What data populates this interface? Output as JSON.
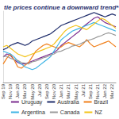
{
  "chart_data": {
    "type": "line",
    "title": "tle prices continue a downward trend*",
    "categories": [
      "Sep 19",
      null,
      "Nov 19",
      null,
      "Jan 20",
      null,
      "Mar 20",
      null,
      "May 20",
      null,
      "Jul 20",
      null,
      "Sep 20",
      null,
      "Nov 20",
      null,
      "Jan 21",
      null,
      "Mar 21",
      null,
      "May 21",
      null,
      "Jul 21",
      null,
      "Sep 21",
      null,
      "Nov 21",
      null,
      "Jan 22",
      null,
      "Mar 22",
      null
    ],
    "series": [
      {
        "name": "Uruguay",
        "color": "#7b2c8f",
        "values": [
          380,
          400,
          390,
          360,
          340,
          330,
          330,
          340,
          350,
          360,
          370,
          380,
          390,
          400,
          410,
          430,
          460,
          480,
          500,
          520,
          540,
          560,
          590,
          610,
          630,
          650,
          660,
          640,
          620,
          610,
          600,
          590
        ]
      },
      {
        "name": "Australia",
        "color": "#1f2d6b",
        "values": [
          430,
          440,
          460,
          470,
          480,
          470,
          460,
          470,
          490,
          500,
          510,
          520,
          530,
          540,
          560,
          580,
          600,
          610,
          620,
          630,
          640,
          650,
          660,
          670,
          680,
          690,
          680,
          670,
          660,
          670,
          680,
          670
        ]
      },
      {
        "name": "Brazil",
        "color": "#f07f1a",
        "values": [
          330,
          370,
          400,
          360,
          310,
          300,
          320,
          340,
          380,
          420,
          440,
          460,
          470,
          460,
          450,
          440,
          450,
          470,
          480,
          470,
          460,
          450,
          470,
          500,
          470,
          450,
          460,
          470,
          480,
          490,
          470,
          450
        ]
      },
      {
        "name": "Argentina",
        "color": "#3fb5e5",
        "values": [
          420,
          410,
          400,
          380,
          350,
          330,
          310,
          300,
          290,
          300,
          320,
          340,
          360,
          380,
          420,
          460,
          500,
          520,
          540,
          560,
          570,
          580,
          590,
          600,
          610,
          620,
          610,
          600,
          590,
          580,
          570,
          560
        ]
      },
      {
        "name": "Canada",
        "color": "#9a9a9a",
        "values": [
          380,
          385,
          370,
          360,
          355,
          340,
          335,
          330,
          345,
          350,
          360,
          372,
          380,
          392,
          400,
          415,
          420,
          432,
          440,
          455,
          460,
          468,
          480,
          492,
          500,
          508,
          520,
          528,
          540,
          548,
          540,
          530
        ]
      },
      {
        "name": "NZ",
        "color": "#f2c318",
        "values": [
          450,
          460,
          440,
          420,
          400,
          390,
          380,
          390,
          400,
          410,
          420,
          430,
          440,
          450,
          470,
          500,
          530,
          560,
          580,
          590,
          600,
          590,
          580,
          570,
          590,
          610,
          630,
          650,
          640,
          620,
          600,
          580
        ]
      }
    ],
    "ylim": [
      200,
      700
    ],
    "grid": false,
    "legend": "bottom",
    "tick_labels": "x"
  }
}
